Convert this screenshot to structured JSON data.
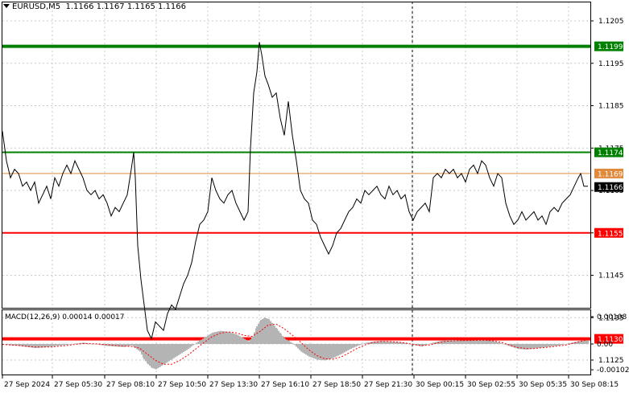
{
  "header": {
    "symbol": "EURUSD,M5",
    "ohlc": "1.1166 1.1167 1.1165 1.1166"
  },
  "price_axis": {
    "ticks": [
      "1.1205",
      "1.1195",
      "1.1185",
      "1.1175",
      "1.1165",
      "1.1155",
      "1.1145",
      "1.1135",
      "1.1125"
    ]
  },
  "levels": [
    {
      "price": 1.1199,
      "label": "1.1199",
      "color": "#008000",
      "width": 4
    },
    {
      "price": 1.1174,
      "label": "1.1174",
      "color": "#008000",
      "width": 2
    },
    {
      "price": 1.1169,
      "label": "1.1169",
      "color": "#e08a3c",
      "width": 1
    },
    {
      "price": 1.1155,
      "label": "1.1155",
      "color": "#ff0000",
      "width": 2
    },
    {
      "price": 1.113,
      "label": "1.1130",
      "color": "#ff0000",
      "width": 4
    }
  ],
  "current_price": {
    "price": 1.1166,
    "label": "1.1166"
  },
  "macd": {
    "label": "MACD(12,26,9) 0.00014 0.00017",
    "ticks": [
      "0.00108",
      "0.00",
      "-0.00102"
    ]
  },
  "time_axis": {
    "labels": [
      "27 Sep 2024",
      "27 Sep 05:30",
      "27 Sep 08:10",
      "27 Sep 10:50",
      "27 Sep 13:30",
      "27 Sep 16:10",
      "27 Sep 18:50",
      "27 Sep 21:30",
      "30 Sep 00:15",
      "30 Sep 02:55",
      "30 Sep 05:35",
      "30 Sep 08:15"
    ]
  },
  "chart_data": {
    "type": "line",
    "title": "EURUSD,M5",
    "ylim": [
      1.1122,
      1.1209
    ],
    "price_points": [
      [
        0,
        1.1179
      ],
      [
        5,
        1.1172
      ],
      [
        10,
        1.1168
      ],
      [
        15,
        1.117
      ],
      [
        20,
        1.1169
      ],
      [
        25,
        1.1166
      ],
      [
        30,
        1.1167
      ],
      [
        35,
        1.1165
      ],
      [
        40,
        1.1167
      ],
      [
        45,
        1.1162
      ],
      [
        50,
        1.1164
      ],
      [
        55,
        1.1166
      ],
      [
        60,
        1.1163
      ],
      [
        65,
        1.1168
      ],
      [
        70,
        1.1166
      ],
      [
        75,
        1.1169
      ],
      [
        80,
        1.1171
      ],
      [
        85,
        1.1169
      ],
      [
        90,
        1.1172
      ],
      [
        95,
        1.117
      ],
      [
        100,
        1.1168
      ],
      [
        105,
        1.1165
      ],
      [
        110,
        1.1164
      ],
      [
        115,
        1.1165
      ],
      [
        120,
        1.1163
      ],
      [
        125,
        1.1164
      ],
      [
        130,
        1.1162
      ],
      [
        135,
        1.1159
      ],
      [
        140,
        1.1161
      ],
      [
        145,
        1.116
      ],
      [
        150,
        1.1162
      ],
      [
        155,
        1.1164
      ],
      [
        160,
        1.117
      ],
      [
        163,
        1.1174
      ],
      [
        165,
        1.1168
      ],
      [
        168,
        1.1152
      ],
      [
        172,
        1.1144
      ],
      [
        176,
        1.1138
      ],
      [
        180,
        1.1132
      ],
      [
        185,
        1.113
      ],
      [
        190,
        1.1134
      ],
      [
        195,
        1.1133
      ],
      [
        200,
        1.1132
      ],
      [
        205,
        1.1136
      ],
      [
        210,
        1.1138
      ],
      [
        215,
        1.1137
      ],
      [
        220,
        1.114
      ],
      [
        225,
        1.1143
      ],
      [
        230,
        1.1145
      ],
      [
        235,
        1.1148
      ],
      [
        240,
        1.1153
      ],
      [
        245,
        1.1157
      ],
      [
        250,
        1.1158
      ],
      [
        255,
        1.116
      ],
      [
        260,
        1.1168
      ],
      [
        265,
        1.1165
      ],
      [
        270,
        1.1163
      ],
      [
        275,
        1.1162
      ],
      [
        280,
        1.1164
      ],
      [
        285,
        1.1165
      ],
      [
        290,
        1.1162
      ],
      [
        295,
        1.116
      ],
      [
        300,
        1.1158
      ],
      [
        305,
        1.116
      ],
      [
        308,
        1.1175
      ],
      [
        312,
        1.1188
      ],
      [
        316,
        1.1193
      ],
      [
        319,
        1.12
      ],
      [
        322,
        1.1197
      ],
      [
        326,
        1.1192
      ],
      [
        330,
        1.119
      ],
      [
        335,
        1.1187
      ],
      [
        340,
        1.1188
      ],
      [
        345,
        1.1182
      ],
      [
        350,
        1.1178
      ],
      [
        355,
        1.1186
      ],
      [
        360,
        1.1178
      ],
      [
        365,
        1.1172
      ],
      [
        370,
        1.1165
      ],
      [
        375,
        1.1163
      ],
      [
        380,
        1.1162
      ],
      [
        385,
        1.1158
      ],
      [
        390,
        1.1157
      ],
      [
        395,
        1.1154
      ],
      [
        400,
        1.1152
      ],
      [
        405,
        1.115
      ],
      [
        410,
        1.1152
      ],
      [
        415,
        1.1155
      ],
      [
        420,
        1.1156
      ],
      [
        425,
        1.1158
      ],
      [
        430,
        1.116
      ],
      [
        435,
        1.1161
      ],
      [
        440,
        1.1163
      ],
      [
        445,
        1.1162
      ],
      [
        450,
        1.1165
      ],
      [
        455,
        1.1164
      ],
      [
        460,
        1.1165
      ],
      [
        465,
        1.1166
      ],
      [
        470,
        1.1164
      ],
      [
        475,
        1.1163
      ],
      [
        480,
        1.1166
      ],
      [
        485,
        1.1164
      ],
      [
        490,
        1.1165
      ],
      [
        495,
        1.1163
      ],
      [
        500,
        1.1164
      ],
      [
        505,
        1.116
      ],
      [
        510,
        1.1158
      ],
      [
        515,
        1.116
      ],
      [
        520,
        1.1161
      ],
      [
        525,
        1.1162
      ],
      [
        530,
        1.116
      ],
      [
        535,
        1.1168
      ],
      [
        540,
        1.1169
      ],
      [
        545,
        1.1168
      ],
      [
        550,
        1.117
      ],
      [
        555,
        1.1169
      ],
      [
        560,
        1.117
      ],
      [
        565,
        1.1168
      ],
      [
        570,
        1.1169
      ],
      [
        575,
        1.1167
      ],
      [
        580,
        1.117
      ],
      [
        585,
        1.1171
      ],
      [
        590,
        1.1169
      ],
      [
        595,
        1.1172
      ],
      [
        600,
        1.1171
      ],
      [
        605,
        1.1168
      ],
      [
        610,
        1.1166
      ],
      [
        615,
        1.1169
      ],
      [
        620,
        1.1168
      ],
      [
        625,
        1.1162
      ],
      [
        630,
        1.1159
      ],
      [
        635,
        1.1157
      ],
      [
        640,
        1.1158
      ],
      [
        645,
        1.116
      ],
      [
        650,
        1.1158
      ],
      [
        655,
        1.1159
      ],
      [
        660,
        1.116
      ],
      [
        665,
        1.1158
      ],
      [
        670,
        1.1159
      ],
      [
        675,
        1.1157
      ],
      [
        680,
        1.116
      ],
      [
        685,
        1.1161
      ],
      [
        690,
        1.116
      ],
      [
        695,
        1.1162
      ],
      [
        700,
        1.1163
      ],
      [
        705,
        1.1164
      ],
      [
        710,
        1.1166
      ],
      [
        715,
        1.1168
      ],
      [
        718,
        1.1169
      ],
      [
        722,
        1.1166
      ],
      [
        727,
        1.1166
      ]
    ],
    "macd_hist": [
      [
        0,
        0.0
      ],
      [
        10,
        -5e-05
      ],
      [
        20,
        -8e-05
      ],
      [
        30,
        -0.00012
      ],
      [
        40,
        -0.00016
      ],
      [
        50,
        -0.00014
      ],
      [
        60,
        -0.0001
      ],
      [
        70,
        -6e-05
      ],
      [
        80,
        -3e-05
      ],
      [
        90,
        2e-05
      ],
      [
        100,
        5e-05
      ],
      [
        110,
        1e-05
      ],
      [
        120,
        -4e-05
      ],
      [
        130,
        -8e-05
      ],
      [
        140,
        -0.0001
      ],
      [
        150,
        -0.00012
      ],
      [
        160,
        -6e-05
      ],
      [
        170,
        -0.0003
      ],
      [
        175,
        -0.0006
      ],
      [
        180,
        -0.0008
      ],
      [
        185,
        -0.00095
      ],
      [
        190,
        -0.001
      ],
      [
        195,
        -0.0009
      ],
      [
        200,
        -0.0008
      ],
      [
        210,
        -0.0006
      ],
      [
        220,
        -0.0004
      ],
      [
        230,
        -0.0002
      ],
      [
        240,
        5e-05
      ],
      [
        250,
        0.00025
      ],
      [
        260,
        0.00045
      ],
      [
        270,
        0.00052
      ],
      [
        280,
        0.00048
      ],
      [
        290,
        0.00038
      ],
      [
        300,
        0.0002
      ],
      [
        305,
        0.0001
      ],
      [
        310,
        0.0003
      ],
      [
        315,
        0.0007
      ],
      [
        320,
        0.00095
      ],
      [
        325,
        0.00104
      ],
      [
        330,
        0.00098
      ],
      [
        335,
        0.0008
      ],
      [
        340,
        0.0006
      ],
      [
        345,
        0.0004
      ],
      [
        350,
        0.0002
      ],
      [
        355,
        0.00012
      ],
      [
        360,
        2e-05
      ],
      [
        370,
        -0.0003
      ],
      [
        380,
        -0.0005
      ],
      [
        390,
        -0.00062
      ],
      [
        400,
        -0.00065
      ],
      [
        410,
        -0.00055
      ],
      [
        420,
        -0.0004
      ],
      [
        430,
        -0.00022
      ],
      [
        440,
        -8e-05
      ],
      [
        450,
        4e-05
      ],
      [
        460,
        0.0001
      ],
      [
        470,
        0.00012
      ],
      [
        480,
        0.0001
      ],
      [
        490,
        8e-05
      ],
      [
        500,
        4e-05
      ],
      [
        510,
        -4e-05
      ],
      [
        520,
        -0.0001
      ],
      [
        530,
        2e-05
      ],
      [
        540,
        0.0001
      ],
      [
        550,
        0.00015
      ],
      [
        560,
        0.00016
      ],
      [
        570,
        0.00014
      ],
      [
        580,
        0.00014
      ],
      [
        590,
        0.00016
      ],
      [
        600,
        0.00015
      ],
      [
        610,
        0.0001
      ],
      [
        620,
        2e-05
      ],
      [
        630,
        -0.0001
      ],
      [
        640,
        -0.0002
      ],
      [
        650,
        -0.00022
      ],
      [
        660,
        -0.00018
      ],
      [
        670,
        -0.00014
      ],
      [
        680,
        -0.0001
      ],
      [
        690,
        -6e-05
      ],
      [
        700,
        0.0
      ],
      [
        710,
        8e-05
      ],
      [
        720,
        0.00014
      ],
      [
        727,
        0.00014
      ]
    ],
    "macd_signal": [
      [
        0,
        -2e-05
      ],
      [
        20,
        -6e-05
      ],
      [
        40,
        -0.00012
      ],
      [
        60,
        -0.00012
      ],
      [
        80,
        -6e-05
      ],
      [
        100,
        2e-05
      ],
      [
        120,
        0.0
      ],
      [
        140,
        -6e-05
      ],
      [
        160,
        -0.0001
      ],
      [
        170,
        -0.00016
      ],
      [
        180,
        -0.0004
      ],
      [
        190,
        -0.00065
      ],
      [
        200,
        -0.0008
      ],
      [
        210,
        -0.0008
      ],
      [
        220,
        -0.00065
      ],
      [
        230,
        -0.00045
      ],
      [
        240,
        -0.0002
      ],
      [
        250,
        5e-05
      ],
      [
        260,
        0.00028
      ],
      [
        270,
        0.00042
      ],
      [
        280,
        0.00048
      ],
      [
        290,
        0.00044
      ],
      [
        300,
        0.00034
      ],
      [
        310,
        0.0003
      ],
      [
        320,
        0.0005
      ],
      [
        330,
        0.00075
      ],
      [
        340,
        0.00078
      ],
      [
        350,
        0.0006
      ],
      [
        360,
        0.00035
      ],
      [
        370,
        8e-05
      ],
      [
        380,
        -0.00022
      ],
      [
        390,
        -0.00045
      ],
      [
        400,
        -0.00058
      ],
      [
        410,
        -0.0006
      ],
      [
        420,
        -0.00052
      ],
      [
        430,
        -0.00036
      ],
      [
        440,
        -0.00018
      ],
      [
        450,
        -4e-05
      ],
      [
        460,
        6e-05
      ],
      [
        470,
        0.0001
      ],
      [
        480,
        0.0001
      ],
      [
        490,
        8e-05
      ],
      [
        500,
        4e-05
      ],
      [
        510,
        -2e-05
      ],
      [
        520,
        -6e-05
      ],
      [
        530,
        -4e-05
      ],
      [
        540,
        4e-05
      ],
      [
        550,
        0.0001
      ],
      [
        560,
        0.00013
      ],
      [
        580,
        0.00014
      ],
      [
        600,
        0.00015
      ],
      [
        610,
        0.00012
      ],
      [
        620,
        6e-05
      ],
      [
        630,
        -4e-05
      ],
      [
        640,
        -0.00014
      ],
      [
        650,
        -0.00018
      ],
      [
        660,
        -0.00018
      ],
      [
        670,
        -0.00015
      ],
      [
        680,
        -0.00012
      ],
      [
        690,
        -8e-05
      ],
      [
        700,
        -4e-05
      ],
      [
        710,
        4e-05
      ],
      [
        720,
        0.00012
      ],
      [
        727,
        0.00017
      ]
    ]
  }
}
